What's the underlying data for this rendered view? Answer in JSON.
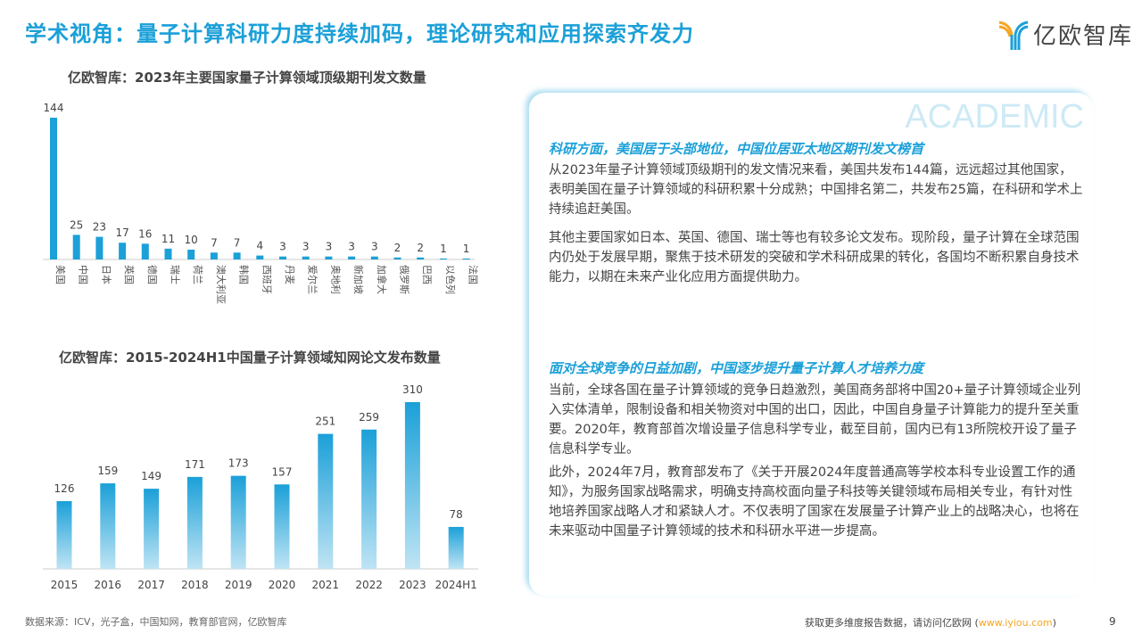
{
  "header": {
    "title": "学术视角：量子计算科研力度持续加码，理论研究和应用探索齐发力",
    "logo_text": "亿欧智库"
  },
  "chart_data": [
    {
      "type": "bar",
      "title": "亿欧智库：2023年主要国家量子计算领域顶级期刊发文数量",
      "categories": [
        "美国",
        "中国",
        "日本",
        "英国",
        "德国",
        "瑞士",
        "荷兰",
        "澳大利亚",
        "韩国",
        "西班牙",
        "丹麦",
        "爱尔兰",
        "奥地利",
        "新加坡",
        "加拿大",
        "俄罗斯",
        "巴西",
        "以色列",
        "法国"
      ],
      "values": [
        144,
        25,
        23,
        17,
        16,
        11,
        10,
        7,
        7,
        4,
        3,
        3,
        3,
        3,
        3,
        2,
        2,
        1,
        1
      ],
      "ylim": [
        0,
        144
      ],
      "grid": false,
      "color": "#1ba0d8"
    },
    {
      "type": "bar",
      "title": "亿欧智库：2015-2024H1中国量子计算领域知网论文发布数量",
      "categories": [
        "2015",
        "2016",
        "2017",
        "2018",
        "2019",
        "2020",
        "2021",
        "2022",
        "2023",
        "2024H1"
      ],
      "values": [
        126,
        159,
        149,
        171,
        173,
        157,
        251,
        259,
        310,
        78
      ],
      "ylim": [
        0,
        310
      ],
      "grid": false,
      "color": "#1ba0d8"
    }
  ],
  "panel": {
    "watermark": "ACADEMIC",
    "sections": [
      {
        "heading": "科研方面，美国居于头部地位，中国位居亚太地区期刊发文榜首",
        "paragraphs": [
          "从2023年量子计算领域顶级期刊的发文情况来看，美国共发布144篇，远远超过其他国家，表明美国在量子计算领域的科研积累十分成熟；中国排名第二，共发布25篇，在科研和学术上持续追赶美国。",
          "其他主要国家如日本、英国、德国、瑞士等也有较多论文发布。现阶段，量子计算在全球范围内仍处于发展早期，聚焦于技术研发的突破和学术科研成果的转化，各国均不断积累自身技术能力，以期在未来产业化应用方面提供助力。"
        ]
      },
      {
        "heading": "面对全球竞争的日益加剧，中国逐步提升量子计算人才培养力度",
        "paragraphs": [
          "当前，全球各国在量子计算领域的竞争日趋激烈，美国商务部将中国20+量子计算领域企业列入实体清单，限制设备和相关物资对中国的出口，因此，中国自身量子计算能力的提升至关重要。2020年，教育部首次增设量子信息科学专业，截至目前，国内已有13所院校开设了量子信息科学专业。",
          "此外，2024年7月，教育部发布了《关于开展2024年度普通高等学校本科专业设置工作的通知》，为服务国家战略需求，明确支持高校面向量子科技等关键领域布局相关专业，有针对性地培养国家战略人才和紧缺人才。不仅表明了国家在发展量子计算产业上的战略决心，也将在未来驱动中国量子计算领域的技术和科研水平进一步提高。"
        ]
      }
    ]
  },
  "footer": {
    "source": "数据来源：ICV，光子盒，中国知网，教育部官网，亿欧智库",
    "more_prefix": "获取更多维度报告数据，请访问亿欧网 (",
    "link": "www.iyiou.com",
    "more_suffix": ")",
    "page": "9"
  }
}
